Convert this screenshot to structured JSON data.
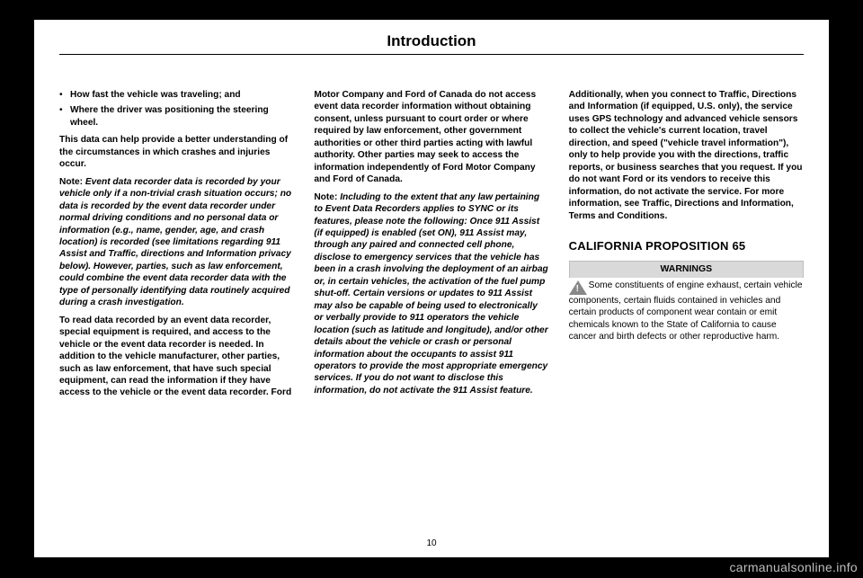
{
  "title": "Introduction",
  "page_number": "10",
  "watermark": "carmanualsonline.info",
  "col1": {
    "bullet1": "How fast the vehicle was traveling; and",
    "bullet2": "Where the driver was positioning the steering wheel.",
    "p1": "This data can help provide a better understanding of the circumstances in which crashes and injuries occur.",
    "note_label": "Note:",
    "note_body": " Event data recorder data is recorded by your vehicle only if a non-trivial crash situation occurs; no data is recorded by the event data recorder under normal driving conditions and no personal data or information (e.g., name, gender, age, and crash location) is recorded (see limitations regarding 911 Assist and Traffic, directions and Information privacy below). However, parties, such as law enforcement, could combine the event data recorder data with the type of personally identifying data routinely acquired during a crash investigation.",
    "p2": "To read data recorded by an event data recorder, special equipment is required, and access to the vehicle or the event data recorder is needed. In addition to the vehicle manufacturer, other parties, such as law enforcement, that have such special equipment, can read the information if they have access to the vehicle or the event data recorder. Ford"
  },
  "col2": {
    "p1": "Motor Company and Ford of Canada do not access event data recorder information without obtaining consent, unless pursuant to court order or where required by law enforcement, other government authorities or other third parties acting with lawful authority. Other parties may seek to access the information independently of Ford Motor Company and Ford of Canada.",
    "note_label": "Note:",
    "note_body": " Including to the extent that any law pertaining to Event Data Recorders applies to SYNC or its features, please note the following: Once 911 Assist (if equipped) is enabled (set ON), 911 Assist may, through any paired and connected cell phone, disclose to emergency services that the vehicle has been in a crash involving the deployment of an airbag or, in certain vehicles, the activation of the fuel pump shut-off. Certain versions or updates to 911 Assist may also be capable of being used to electronically or verbally provide to 911 operators the vehicle location (such as latitude and longitude), and/or other details about the vehicle or crash or personal information about the occupants to assist 911 operators to provide the most appropriate emergency services. If you do not want to disclose this information, do not activate the 911 Assist feature."
  },
  "col3": {
    "p1": "Additionally, when you connect to Traffic, Directions and Information (if equipped, U.S. only), the service uses GPS technology and advanced vehicle sensors to collect the vehicle's current location, travel direction, and speed (\"vehicle travel information\"), only to help provide you with the directions, traffic reports, or business searches that you request. If you do not want Ford or its vendors to receive this information, do not activate the service. For more information, see Traffic, Directions and Information, Terms and Conditions.",
    "h2": "CALIFORNIA PROPOSITION 65",
    "warn_title": "WARNINGS",
    "warn_body": "Some constituents of engine exhaust, certain vehicle components, certain fluids contained in vehicles and certain products of component wear contain or emit chemicals known to the State of California to cause cancer and birth defects or other reproductive harm."
  }
}
